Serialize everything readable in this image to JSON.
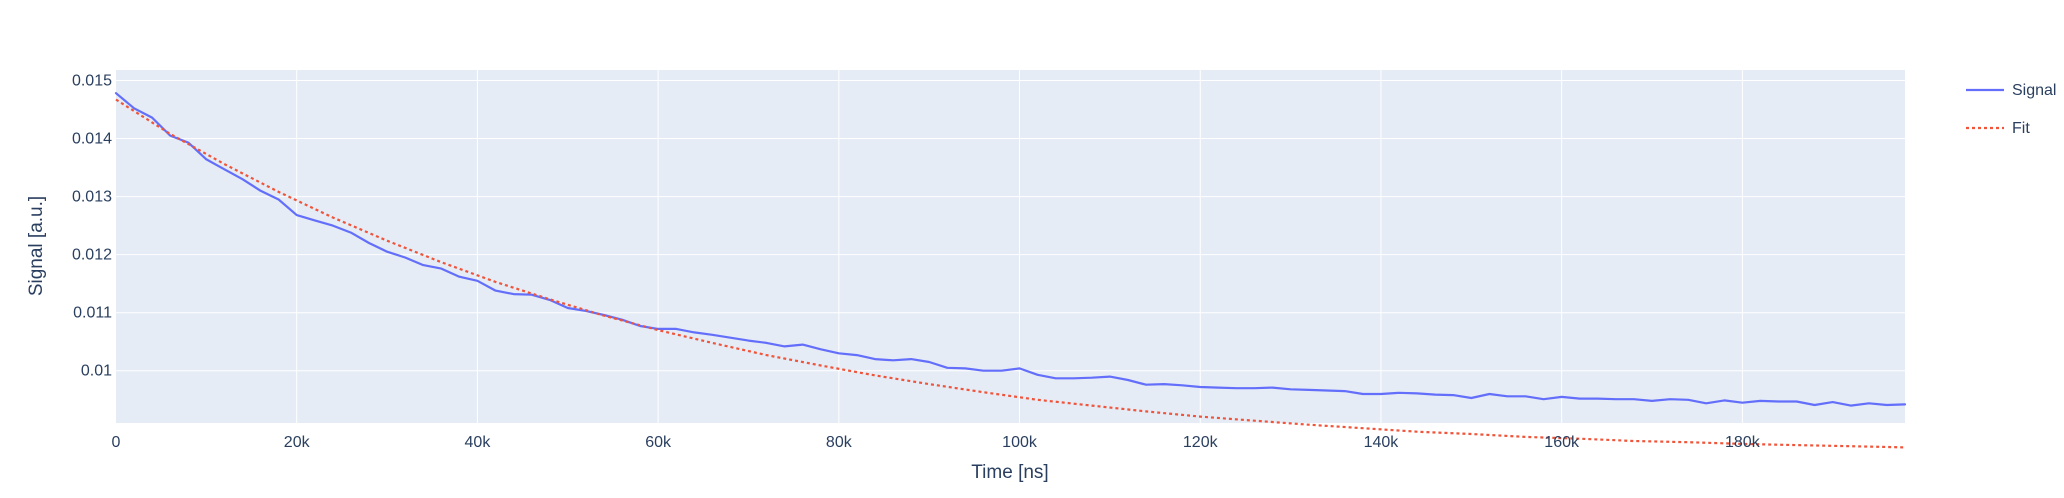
{
  "chart_data": {
    "type": "line",
    "xlabel": "Time [ns]",
    "ylabel": "Signal [a.u.]",
    "xlim": [
      0,
      198000
    ],
    "ylim": [
      0.0091,
      0.01518
    ],
    "x_ticks": [
      0,
      20000,
      40000,
      60000,
      80000,
      100000,
      120000,
      140000,
      160000,
      180000
    ],
    "x_tick_labels": [
      "0",
      "20k",
      "40k",
      "60k",
      "80k",
      "100k",
      "120k",
      "140k",
      "160k",
      "180k"
    ],
    "y_ticks": [
      0.01,
      0.011,
      0.012,
      0.013,
      0.014,
      0.015
    ],
    "y_tick_labels": [
      "0.01",
      "0.011",
      "0.012",
      "0.013",
      "0.014",
      "0.015"
    ],
    "grid": true,
    "legend_position": "top-right",
    "colors": {
      "plot_bg": "#e5ecf6",
      "signal": "#636efa",
      "fit": "#ef553b",
      "text": "#2a3f5f",
      "grid": "#ffffff"
    },
    "series": [
      {
        "name": "Signal",
        "style": "solid",
        "points": [
          [
            0,
            0.01478
          ],
          [
            2000,
            0.01452
          ],
          [
            4000,
            0.01436
          ],
          [
            6000,
            0.01405
          ],
          [
            8000,
            0.01393
          ],
          [
            10000,
            0.01364
          ],
          [
            12000,
            0.01347
          ],
          [
            14000,
            0.0133
          ],
          [
            16000,
            0.0131
          ],
          [
            18000,
            0.01295
          ],
          [
            20000,
            0.01268
          ],
          [
            22000,
            0.01259
          ],
          [
            24000,
            0.0125
          ],
          [
            26000,
            0.01238
          ],
          [
            28000,
            0.0122
          ],
          [
            30000,
            0.01205
          ],
          [
            32000,
            0.01195
          ],
          [
            34000,
            0.01182
          ],
          [
            36000,
            0.01176
          ],
          [
            38000,
            0.01162
          ],
          [
            40000,
            0.01155
          ],
          [
            42000,
            0.01138
          ],
          [
            44000,
            0.01132
          ],
          [
            46000,
            0.01131
          ],
          [
            48000,
            0.01122
          ],
          [
            50000,
            0.01108
          ],
          [
            52000,
            0.01103
          ],
          [
            54000,
            0.01096
          ],
          [
            56000,
            0.01088
          ],
          [
            58000,
            0.01077
          ],
          [
            60000,
            0.01072
          ],
          [
            62000,
            0.01072
          ],
          [
            64000,
            0.01066
          ],
          [
            66000,
            0.01062
          ],
          [
            68000,
            0.01057
          ],
          [
            70000,
            0.01052
          ],
          [
            72000,
            0.01048
          ],
          [
            74000,
            0.01042
          ],
          [
            76000,
            0.01045
          ],
          [
            78000,
            0.01037
          ],
          [
            80000,
            0.0103
          ],
          [
            82000,
            0.01027
          ],
          [
            84000,
            0.0102
          ],
          [
            86000,
            0.01018
          ],
          [
            88000,
            0.0102
          ],
          [
            90000,
            0.01015
          ],
          [
            92000,
            0.01005
          ],
          [
            94000,
            0.01004
          ],
          [
            96000,
            0.01
          ],
          [
            98000,
            0.01
          ],
          [
            100000,
            0.01004
          ],
          [
            102000,
            0.00993
          ],
          [
            104000,
            0.00987
          ],
          [
            106000,
            0.00987
          ],
          [
            108000,
            0.00988
          ],
          [
            110000,
            0.0099
          ],
          [
            112000,
            0.00984
          ],
          [
            114000,
            0.00976
          ],
          [
            116000,
            0.00977
          ],
          [
            118000,
            0.00975
          ],
          [
            120000,
            0.00972
          ],
          [
            122000,
            0.00971
          ],
          [
            124000,
            0.0097
          ],
          [
            126000,
            0.0097
          ],
          [
            128000,
            0.00971
          ],
          [
            130000,
            0.00968
          ],
          [
            132000,
            0.00967
          ],
          [
            134000,
            0.00966
          ],
          [
            136000,
            0.00965
          ],
          [
            138000,
            0.0096
          ],
          [
            140000,
            0.0096
          ],
          [
            142000,
            0.00962
          ],
          [
            144000,
            0.00961
          ],
          [
            146000,
            0.00959
          ],
          [
            148000,
            0.00958
          ],
          [
            150000,
            0.00953
          ],
          [
            152000,
            0.0096
          ],
          [
            154000,
            0.00956
          ],
          [
            156000,
            0.00956
          ],
          [
            158000,
            0.00951
          ],
          [
            160000,
            0.00955
          ],
          [
            162000,
            0.00952
          ],
          [
            164000,
            0.00952
          ],
          [
            166000,
            0.00951
          ],
          [
            168000,
            0.00951
          ],
          [
            170000,
            0.00948
          ],
          [
            172000,
            0.00951
          ],
          [
            174000,
            0.0095
          ],
          [
            176000,
            0.00944
          ],
          [
            178000,
            0.00949
          ],
          [
            180000,
            0.00945
          ],
          [
            182000,
            0.00948
          ],
          [
            184000,
            0.00947
          ],
          [
            186000,
            0.00947
          ],
          [
            188000,
            0.00941
          ],
          [
            190000,
            0.00946
          ],
          [
            192000,
            0.0094
          ],
          [
            194000,
            0.00944
          ],
          [
            196000,
            0.00941
          ],
          [
            198000,
            0.00942
          ]
        ]
      },
      {
        "name": "Fit",
        "style": "dotted",
        "points": [
          [
            0,
            0.01467
          ],
          [
            6000,
            0.01408
          ],
          [
            12000,
            0.01356
          ],
          [
            18000,
            0.01308
          ],
          [
            24000,
            0.01264
          ],
          [
            30000,
            0.01224
          ],
          [
            36000,
            0.01187
          ],
          [
            42000,
            0.01153
          ],
          [
            48000,
            0.01123
          ],
          [
            54000,
            0.01095
          ],
          [
            60000,
            0.0107
          ],
          [
            66000,
            0.01048
          ],
          [
            72000,
            0.01027
          ],
          [
            78000,
            0.01009
          ],
          [
            84000,
            0.00992
          ],
          [
            90000,
            0.00977
          ],
          [
            96000,
            0.00963
          ],
          [
            102000,
            0.0095
          ],
          [
            108000,
            0.0094
          ],
          [
            114000,
            0.0093
          ],
          [
            120000,
            0.00921
          ],
          [
            126000,
            0.00914
          ],
          [
            132000,
            0.00907
          ],
          [
            138000,
            0.00901
          ],
          [
            144000,
            0.00895
          ],
          [
            150000,
            0.00891
          ],
          [
            156000,
            0.00886
          ],
          [
            162000,
            0.00883
          ],
          [
            168000,
            0.00879
          ],
          [
            174000,
            0.00877
          ],
          [
            180000,
            0.00874
          ],
          [
            186000,
            0.00872
          ],
          [
            192000,
            0.0087
          ],
          [
            198000,
            0.00868
          ]
        ]
      }
    ]
  }
}
